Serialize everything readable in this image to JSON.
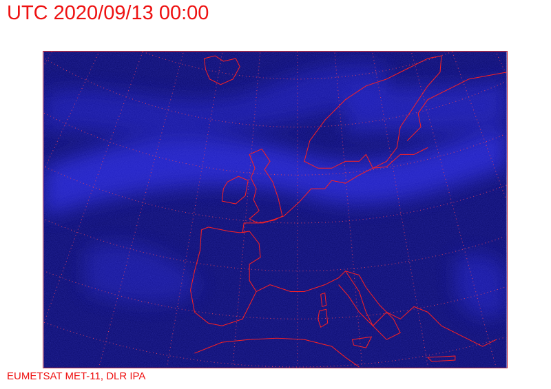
{
  "title": "UTC 2020/09/13 00:00",
  "credit": "EUMETSAT MET-11, DLR IPA",
  "map": {
    "background_color": "#0a0a6a",
    "cloud_color": "#2a2ae0",
    "coastline_color": "#ff2020",
    "graticule_color": "#e04060",
    "graticule_style": "dotted"
  }
}
